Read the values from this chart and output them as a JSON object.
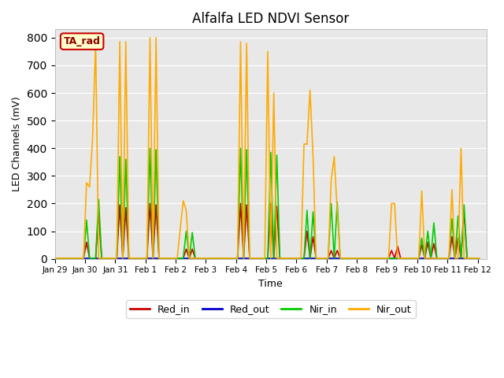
{
  "title": "Alfalfa LED NDVI Sensor",
  "xlabel": "Time",
  "ylabel": "LED Channels (mV)",
  "ylim": [
    0,
    830
  ],
  "yticks": [
    0,
    100,
    200,
    300,
    400,
    500,
    600,
    700,
    800
  ],
  "background_color": "#e8e8e8",
  "legend_label": "TA_rad",
  "legend_box_facecolor": "#ffffcc",
  "legend_box_edge": "#cc0000",
  "series_colors": {
    "Red_in": "#cc0000",
    "Red_out": "#0000cc",
    "Nir_in": "#00cc00",
    "Nir_out": "#ffaa00"
  },
  "linewidth": 1.2,
  "xtick_labels": [
    "Jan 29",
    "Jan 30",
    "Jan 31",
    "Feb 1",
    "Feb 2",
    "Feb 3",
    "Feb 4",
    "Feb 5",
    "Feb 6",
    "Feb 7",
    "Feb 8",
    "Feb 9",
    "Feb 10",
    "Feb 11",
    "Feb 12"
  ],
  "x_points": [
    0.05,
    0.15,
    0.25,
    0.35,
    0.45,
    0.55,
    0.65,
    0.75,
    0.85,
    0.95,
    1.05,
    1.15,
    1.25,
    1.35,
    1.45,
    1.55,
    1.65,
    1.75,
    1.85,
    1.95,
    2.05,
    2.15,
    2.25,
    2.35,
    2.45,
    2.55,
    2.65,
    2.75,
    2.85,
    2.95,
    3.05,
    3.15,
    3.25,
    3.35,
    3.45,
    3.55,
    3.65,
    3.75,
    3.85,
    3.95,
    4.05,
    4.15,
    4.25,
    4.35,
    4.45,
    4.55,
    4.65,
    4.75,
    4.85,
    4.95,
    5.05,
    5.15,
    5.25,
    5.35,
    5.45,
    5.55,
    5.65,
    5.75,
    5.85,
    5.95,
    6.05,
    6.15,
    6.25,
    6.35,
    6.45,
    6.55,
    6.65,
    6.75,
    6.85,
    6.95,
    7.05,
    7.15,
    7.25,
    7.35,
    7.45,
    7.55,
    7.65,
    7.75,
    7.85,
    7.95,
    8.05,
    8.15,
    8.25,
    8.35,
    8.45,
    8.55,
    8.65,
    8.75,
    8.85,
    8.95,
    9.05,
    9.15,
    9.25,
    9.35,
    9.45,
    9.55,
    9.65,
    9.75,
    9.85,
    9.95,
    10.05,
    10.15,
    10.25,
    10.35,
    10.45,
    10.55,
    10.65,
    10.75,
    10.85,
    10.95,
    11.05,
    11.15,
    11.25,
    11.35,
    11.45,
    11.55,
    11.65,
    11.75,
    11.85,
    11.95,
    12.05,
    12.15,
    12.25,
    12.35,
    12.45,
    12.55,
    12.65,
    12.75,
    12.85,
    12.95,
    13.05,
    13.15,
    13.25,
    13.35,
    13.45,
    13.55,
    13.65,
    13.75,
    13.85,
    13.95,
    14.05
  ],
  "Red_in": [
    2,
    2,
    2,
    2,
    2,
    2,
    2,
    2,
    2,
    2,
    60,
    2,
    2,
    2,
    165,
    2,
    2,
    2,
    2,
    2,
    2,
    195,
    2,
    185,
    2,
    2,
    2,
    2,
    2,
    2,
    2,
    200,
    2,
    195,
    2,
    2,
    2,
    2,
    2,
    2,
    2,
    2,
    2,
    35,
    2,
    35,
    2,
    2,
    2,
    2,
    2,
    2,
    2,
    2,
    2,
    2,
    2,
    2,
    2,
    2,
    2,
    200,
    2,
    195,
    2,
    2,
    2,
    2,
    2,
    2,
    2,
    200,
    2,
    190,
    2,
    2,
    2,
    2,
    2,
    2,
    2,
    2,
    2,
    100,
    2,
    80,
    2,
    2,
    2,
    2,
    2,
    30,
    2,
    30,
    2,
    2,
    2,
    2,
    2,
    2,
    2,
    2,
    2,
    2,
    2,
    2,
    2,
    2,
    2,
    2,
    2,
    30,
    2,
    45,
    2,
    2,
    2,
    2,
    2,
    2,
    2,
    50,
    2,
    60,
    2,
    55,
    2,
    2,
    2,
    2,
    2,
    80,
    2,
    75,
    2,
    170,
    2,
    2,
    2,
    2,
    2
  ],
  "Red_out": [
    2,
    2,
    2,
    2,
    2,
    2,
    2,
    2,
    2,
    2,
    2,
    2,
    2,
    2,
    2,
    2,
    2,
    2,
    2,
    2,
    2,
    2,
    2,
    2,
    2,
    2,
    2,
    2,
    2,
    2,
    2,
    2,
    2,
    2,
    2,
    2,
    2,
    2,
    2,
    2,
    2,
    2,
    2,
    2,
    2,
    2,
    2,
    2,
    2,
    2,
    2,
    2,
    2,
    2,
    2,
    2,
    2,
    2,
    2,
    2,
    2,
    2,
    2,
    2,
    2,
    2,
    2,
    2,
    2,
    2,
    2,
    2,
    2,
    2,
    2,
    2,
    2,
    2,
    2,
    2,
    2,
    2,
    2,
    2,
    2,
    2,
    2,
    2,
    2,
    2,
    2,
    2,
    2,
    2,
    2,
    2,
    2,
    2,
    2,
    2,
    2,
    2,
    2,
    2,
    2,
    2,
    2,
    2,
    2,
    2,
    2,
    2,
    2,
    2,
    2,
    2,
    2,
    2,
    2,
    2,
    2,
    2,
    2,
    2,
    2,
    2,
    2,
    2,
    2,
    2,
    2,
    2,
    2,
    2,
    2,
    2,
    2,
    2,
    2,
    2,
    2
  ],
  "Nir_in": [
    2,
    2,
    2,
    2,
    2,
    2,
    2,
    2,
    2,
    2,
    140,
    2,
    2,
    2,
    215,
    2,
    2,
    2,
    2,
    2,
    2,
    370,
    2,
    360,
    2,
    2,
    2,
    2,
    2,
    2,
    2,
    400,
    2,
    395,
    2,
    2,
    2,
    2,
    2,
    2,
    2,
    2,
    2,
    100,
    2,
    95,
    2,
    2,
    2,
    2,
    2,
    2,
    2,
    2,
    2,
    2,
    2,
    2,
    2,
    2,
    2,
    400,
    2,
    395,
    2,
    2,
    2,
    2,
    2,
    2,
    2,
    385,
    2,
    375,
    2,
    2,
    2,
    2,
    2,
    2,
    2,
    2,
    2,
    175,
    2,
    170,
    2,
    2,
    2,
    2,
    2,
    200,
    2,
    205,
    2,
    2,
    2,
    2,
    2,
    2,
    2,
    2,
    2,
    2,
    2,
    2,
    2,
    2,
    2,
    2,
    2,
    2,
    2,
    2,
    2,
    2,
    2,
    2,
    2,
    2,
    2,
    75,
    2,
    100,
    2,
    130,
    2,
    2,
    2,
    2,
    2,
    145,
    2,
    155,
    2,
    195,
    2,
    2,
    2,
    2,
    2
  ],
  "Nir_out": [
    2,
    2,
    2,
    2,
    2,
    2,
    2,
    2,
    2,
    2,
    275,
    260,
    435,
    785,
    2,
    2,
    2,
    2,
    2,
    2,
    2,
    785,
    2,
    785,
    2,
    2,
    2,
    2,
    2,
    2,
    2,
    800,
    2,
    800,
    2,
    2,
    2,
    2,
    2,
    2,
    2,
    105,
    210,
    175,
    2,
    2,
    2,
    2,
    2,
    2,
    2,
    2,
    2,
    2,
    2,
    2,
    2,
    2,
    2,
    2,
    2,
    785,
    2,
    780,
    2,
    2,
    2,
    2,
    2,
    2,
    750,
    2,
    600,
    2,
    2,
    2,
    2,
    2,
    2,
    2,
    2,
    2,
    415,
    415,
    610,
    370,
    2,
    2,
    2,
    2,
    2,
    285,
    370,
    175,
    2,
    2,
    2,
    2,
    2,
    2,
    2,
    2,
    2,
    2,
    2,
    2,
    2,
    2,
    2,
    2,
    2,
    200,
    200,
    2,
    2,
    2,
    2,
    2,
    2,
    2,
    2,
    245,
    2,
    2,
    2,
    2,
    2,
    2,
    2,
    2,
    2,
    250,
    2,
    2,
    400,
    2,
    2,
    2,
    2,
    2,
    2
  ]
}
